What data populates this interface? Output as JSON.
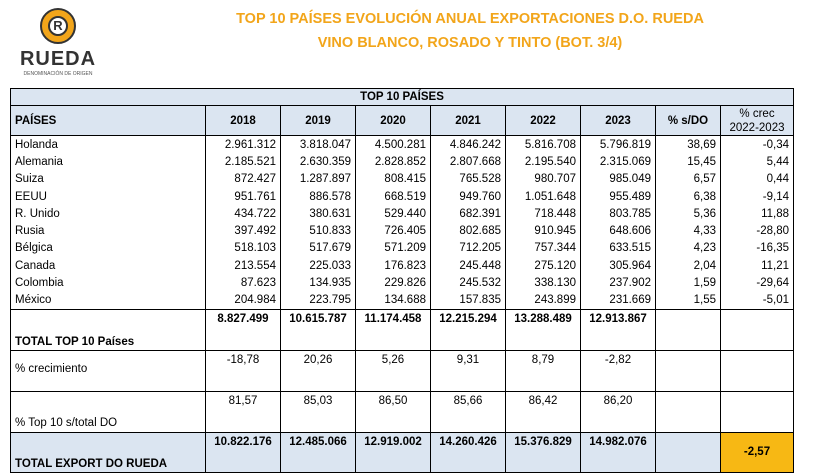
{
  "logo": {
    "word": "RUEDA",
    "sub": "DENOMINACIÓN DE ORIGEN",
    "mark": "R"
  },
  "title_line1": "TOP 10  PAÍSES EVOLUCIÓN ANUAL EXPORTACIONES D.O. RUEDA",
  "title_line2": "VINO BLANCO, ROSADO Y TINTO (BOT. 3/4)",
  "table": {
    "caption": "TOP 10 PAÍSES",
    "headers": [
      "PAÍSES",
      "2018",
      "2019",
      "2020",
      "2021",
      "2022",
      "2023",
      "% s/DO",
      "% crec 2022-2023"
    ],
    "rows": [
      {
        "pais": "Holanda",
        "v": [
          "2.961.312",
          "3.818.047",
          "4.500.281",
          "4.846.242",
          "5.816.708",
          "5.796.819"
        ],
        "pct": "38,69",
        "crec": "-0,34"
      },
      {
        "pais": "Alemania",
        "v": [
          "2.185.521",
          "2.630.359",
          "2.828.852",
          "2.807.668",
          "2.195.540",
          "2.315.069"
        ],
        "pct": "15,45",
        "crec": "5,44"
      },
      {
        "pais": "Suiza",
        "v": [
          "872.427",
          "1.287.897",
          "808.415",
          "765.528",
          "980.707",
          "985.049"
        ],
        "pct": "6,57",
        "crec": "0,44"
      },
      {
        "pais": "EEUU",
        "v": [
          "951.761",
          "886.578",
          "668.519",
          "949.760",
          "1.051.648",
          "955.489"
        ],
        "pct": "6,38",
        "crec": "-9,14"
      },
      {
        "pais": "R. Unido",
        "v": [
          "434.722",
          "380.631",
          "529.440",
          "682.391",
          "718.448",
          "803.785"
        ],
        "pct": "5,36",
        "crec": "11,88"
      },
      {
        "pais": "Rusia",
        "v": [
          "397.492",
          "510.833",
          "726.405",
          "802.685",
          "910.945",
          "648.606"
        ],
        "pct": "4,33",
        "crec": "-28,80"
      },
      {
        "pais": "Bélgica",
        "v": [
          "518.103",
          "517.679",
          "571.209",
          "712.205",
          "757.344",
          "633.515"
        ],
        "pct": "4,23",
        "crec": "-16,35"
      },
      {
        "pais": "Canada",
        "v": [
          "213.554",
          "225.033",
          "176.823",
          "245.448",
          "275.120",
          "305.964"
        ],
        "pct": "2,04",
        "crec": "11,21"
      },
      {
        "pais": "Colombia",
        "v": [
          "87.623",
          "134.935",
          "229.826",
          "245.532",
          "338.130",
          "237.902"
        ],
        "pct": "1,59",
        "crec": "-29,64"
      },
      {
        "pais": "México",
        "v": [
          "204.984",
          "223.795",
          "134.688",
          "157.835",
          "243.899",
          "231.669"
        ],
        "pct": "1,55",
        "crec": "-5,01"
      }
    ],
    "total_top10": {
      "label": "TOTAL TOP 10 Países",
      "v": [
        "8.827.499",
        "10.615.787",
        "11.174.458",
        "12.215.294",
        "13.288.489",
        "12.913.867"
      ]
    },
    "crecimiento": {
      "label": "% crecimiento",
      "v": [
        "-18,78",
        "20,26",
        "5,26",
        "9,31",
        "8,79",
        "-2,82"
      ]
    },
    "top10_share": {
      "label": "% Top 10 s/total DO",
      "v": [
        "81,57",
        "85,03",
        "86,50",
        "85,66",
        "86,42",
        "86,20"
      ]
    },
    "total_export": {
      "label": "TOTAL EXPORT DO RUEDA",
      "v": [
        "10.822.176",
        "12.485.066",
        "12.919.002",
        "14.260.426",
        "15.376.829",
        "14.982.076"
      ],
      "crec": "-2,57"
    }
  },
  "colors": {
    "title": "#f2a51a",
    "header_bg": "#dbe5f1",
    "highlight": "#f7b814"
  }
}
